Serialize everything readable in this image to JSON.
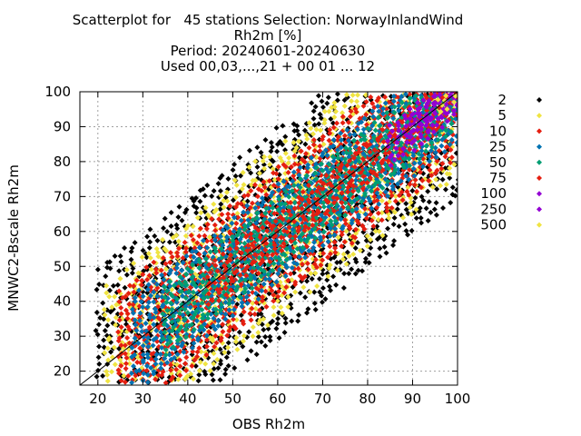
{
  "chart_data": {
    "type": "scatter",
    "title_lines": [
      "Scatterplot for   45 stations Selection: NorwayInlandWind",
      "Rh2m [%]",
      "Period: 20240601-20240630",
      "Used 00,03,...,21 + 00 01 ... 12"
    ],
    "xlabel": "OBS Rh2m",
    "ylabel": "MNWC2-Bscale Rh2m",
    "xlim": [
      16,
      100
    ],
    "ylim": [
      16,
      100
    ],
    "x_ticks": [
      20,
      30,
      40,
      50,
      60,
      70,
      80,
      90,
      100
    ],
    "y_ticks": [
      20,
      30,
      40,
      50,
      60,
      70,
      80,
      90,
      100
    ],
    "grid": true,
    "diagonal_line": true,
    "legend_position": "right",
    "series": [
      {
        "name": "2",
        "color": "#000000"
      },
      {
        "name": "5",
        "color": "#f0e442"
      },
      {
        "name": "10",
        "color": "#e51e10"
      },
      {
        "name": "25",
        "color": "#0072b2"
      },
      {
        "name": "50",
        "color": "#009e73"
      },
      {
        "name": "75",
        "color": "#e51e10"
      },
      {
        "name": "100",
        "color": "#9400d3"
      },
      {
        "name": "250",
        "color": "#9400d3"
      },
      {
        "name": "500",
        "color": "#f0e442"
      }
    ],
    "density_bands": [
      {
        "series": "2",
        "halfwidth": 30,
        "xmin": 20,
        "xmax": 100
      },
      {
        "series": "5",
        "halfwidth": 24,
        "xmin": 22,
        "xmax": 100
      },
      {
        "series": "10",
        "halfwidth": 19,
        "xmin": 25,
        "xmax": 100
      },
      {
        "series": "25",
        "halfwidth": 14,
        "xmin": 28,
        "xmax": 100
      },
      {
        "series": "50",
        "halfwidth": 10,
        "xmin": 35,
        "xmax": 100
      },
      {
        "series": "75",
        "halfwidth": 6,
        "xmin": 45,
        "xmax": 100
      },
      {
        "series": "100",
        "halfwidth": 6,
        "xmin": 85,
        "xmax": 100
      },
      {
        "series": "250",
        "halfwidth": 4,
        "xmin": 90,
        "xmax": 100
      },
      {
        "series": "500",
        "halfwidth": 2,
        "xmin": 96,
        "xmax": 100
      }
    ]
  }
}
